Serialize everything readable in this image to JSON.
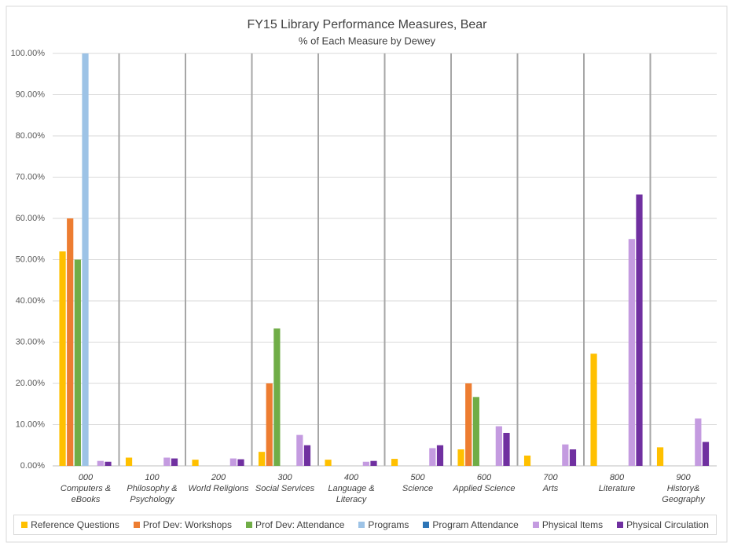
{
  "chart_data": {
    "type": "bar",
    "title": "FY15 Library Performance Measures, Bear",
    "subtitle": "% of Each Measure by Dewey",
    "categories": [
      "000",
      "100",
      "200",
      "300",
      "400",
      "500",
      "600",
      "700",
      "800",
      "900"
    ],
    "category_descriptions": [
      "Computers & eBooks",
      "Philosophy & Psychology",
      "World Religions",
      "Social Services",
      "Language & Literacy",
      "Science",
      "Applied Science",
      "Arts",
      "Literature",
      "History& Geography"
    ],
    "series": [
      {
        "name": "Reference Questions",
        "color": "#ffc000",
        "values": [
          52,
          2,
          1.5,
          3.4,
          1.5,
          1.7,
          4,
          2.5,
          27.2,
          4.5
        ]
      },
      {
        "name": "Prof Dev: Workshops",
        "color": "#ed7d31",
        "values": [
          60,
          0,
          0,
          20,
          0,
          0,
          20,
          0,
          0,
          0
        ]
      },
      {
        "name": "Prof Dev: Attendance",
        "color": "#70ad47",
        "values": [
          50,
          0,
          0,
          33.3,
          0,
          0,
          16.7,
          0,
          0,
          0
        ]
      },
      {
        "name": "Programs",
        "color": "#9dc3e6",
        "values": [
          100,
          0,
          0,
          0,
          0,
          0,
          0,
          0,
          0,
          0
        ]
      },
      {
        "name": "Program Attendance",
        "color": "#2e75b6",
        "values": [
          0,
          0,
          0,
          0,
          0,
          0,
          0,
          0,
          0,
          0
        ]
      },
      {
        "name": "Physical Items",
        "color": "#c49be0",
        "values": [
          1.2,
          2,
          1.8,
          7.5,
          1,
          4.3,
          9.6,
          5.2,
          55,
          11.5
        ]
      },
      {
        "name": "Physical Circulation",
        "color": "#7030a0",
        "values": [
          1,
          1.8,
          1.6,
          5,
          1.2,
          5,
          8,
          4,
          65.8,
          5.8
        ]
      }
    ],
    "ylim": [
      0,
      100
    ],
    "yticks": [
      {
        "value": 0,
        "label": "0.00%"
      },
      {
        "value": 10,
        "label": "10.00%"
      },
      {
        "value": 20,
        "label": "20.00%"
      },
      {
        "value": 30,
        "label": "30.00%"
      },
      {
        "value": 40,
        "label": "40.00%"
      },
      {
        "value": 50,
        "label": "50.00%"
      },
      {
        "value": 60,
        "label": "60.00%"
      },
      {
        "value": 70,
        "label": "70.00%"
      },
      {
        "value": 80,
        "label": "80.00%"
      },
      {
        "value": 90,
        "label": "90.00%"
      },
      {
        "value": 100,
        "label": "100.00%"
      }
    ],
    "grid": true,
    "legend": "bottom"
  }
}
